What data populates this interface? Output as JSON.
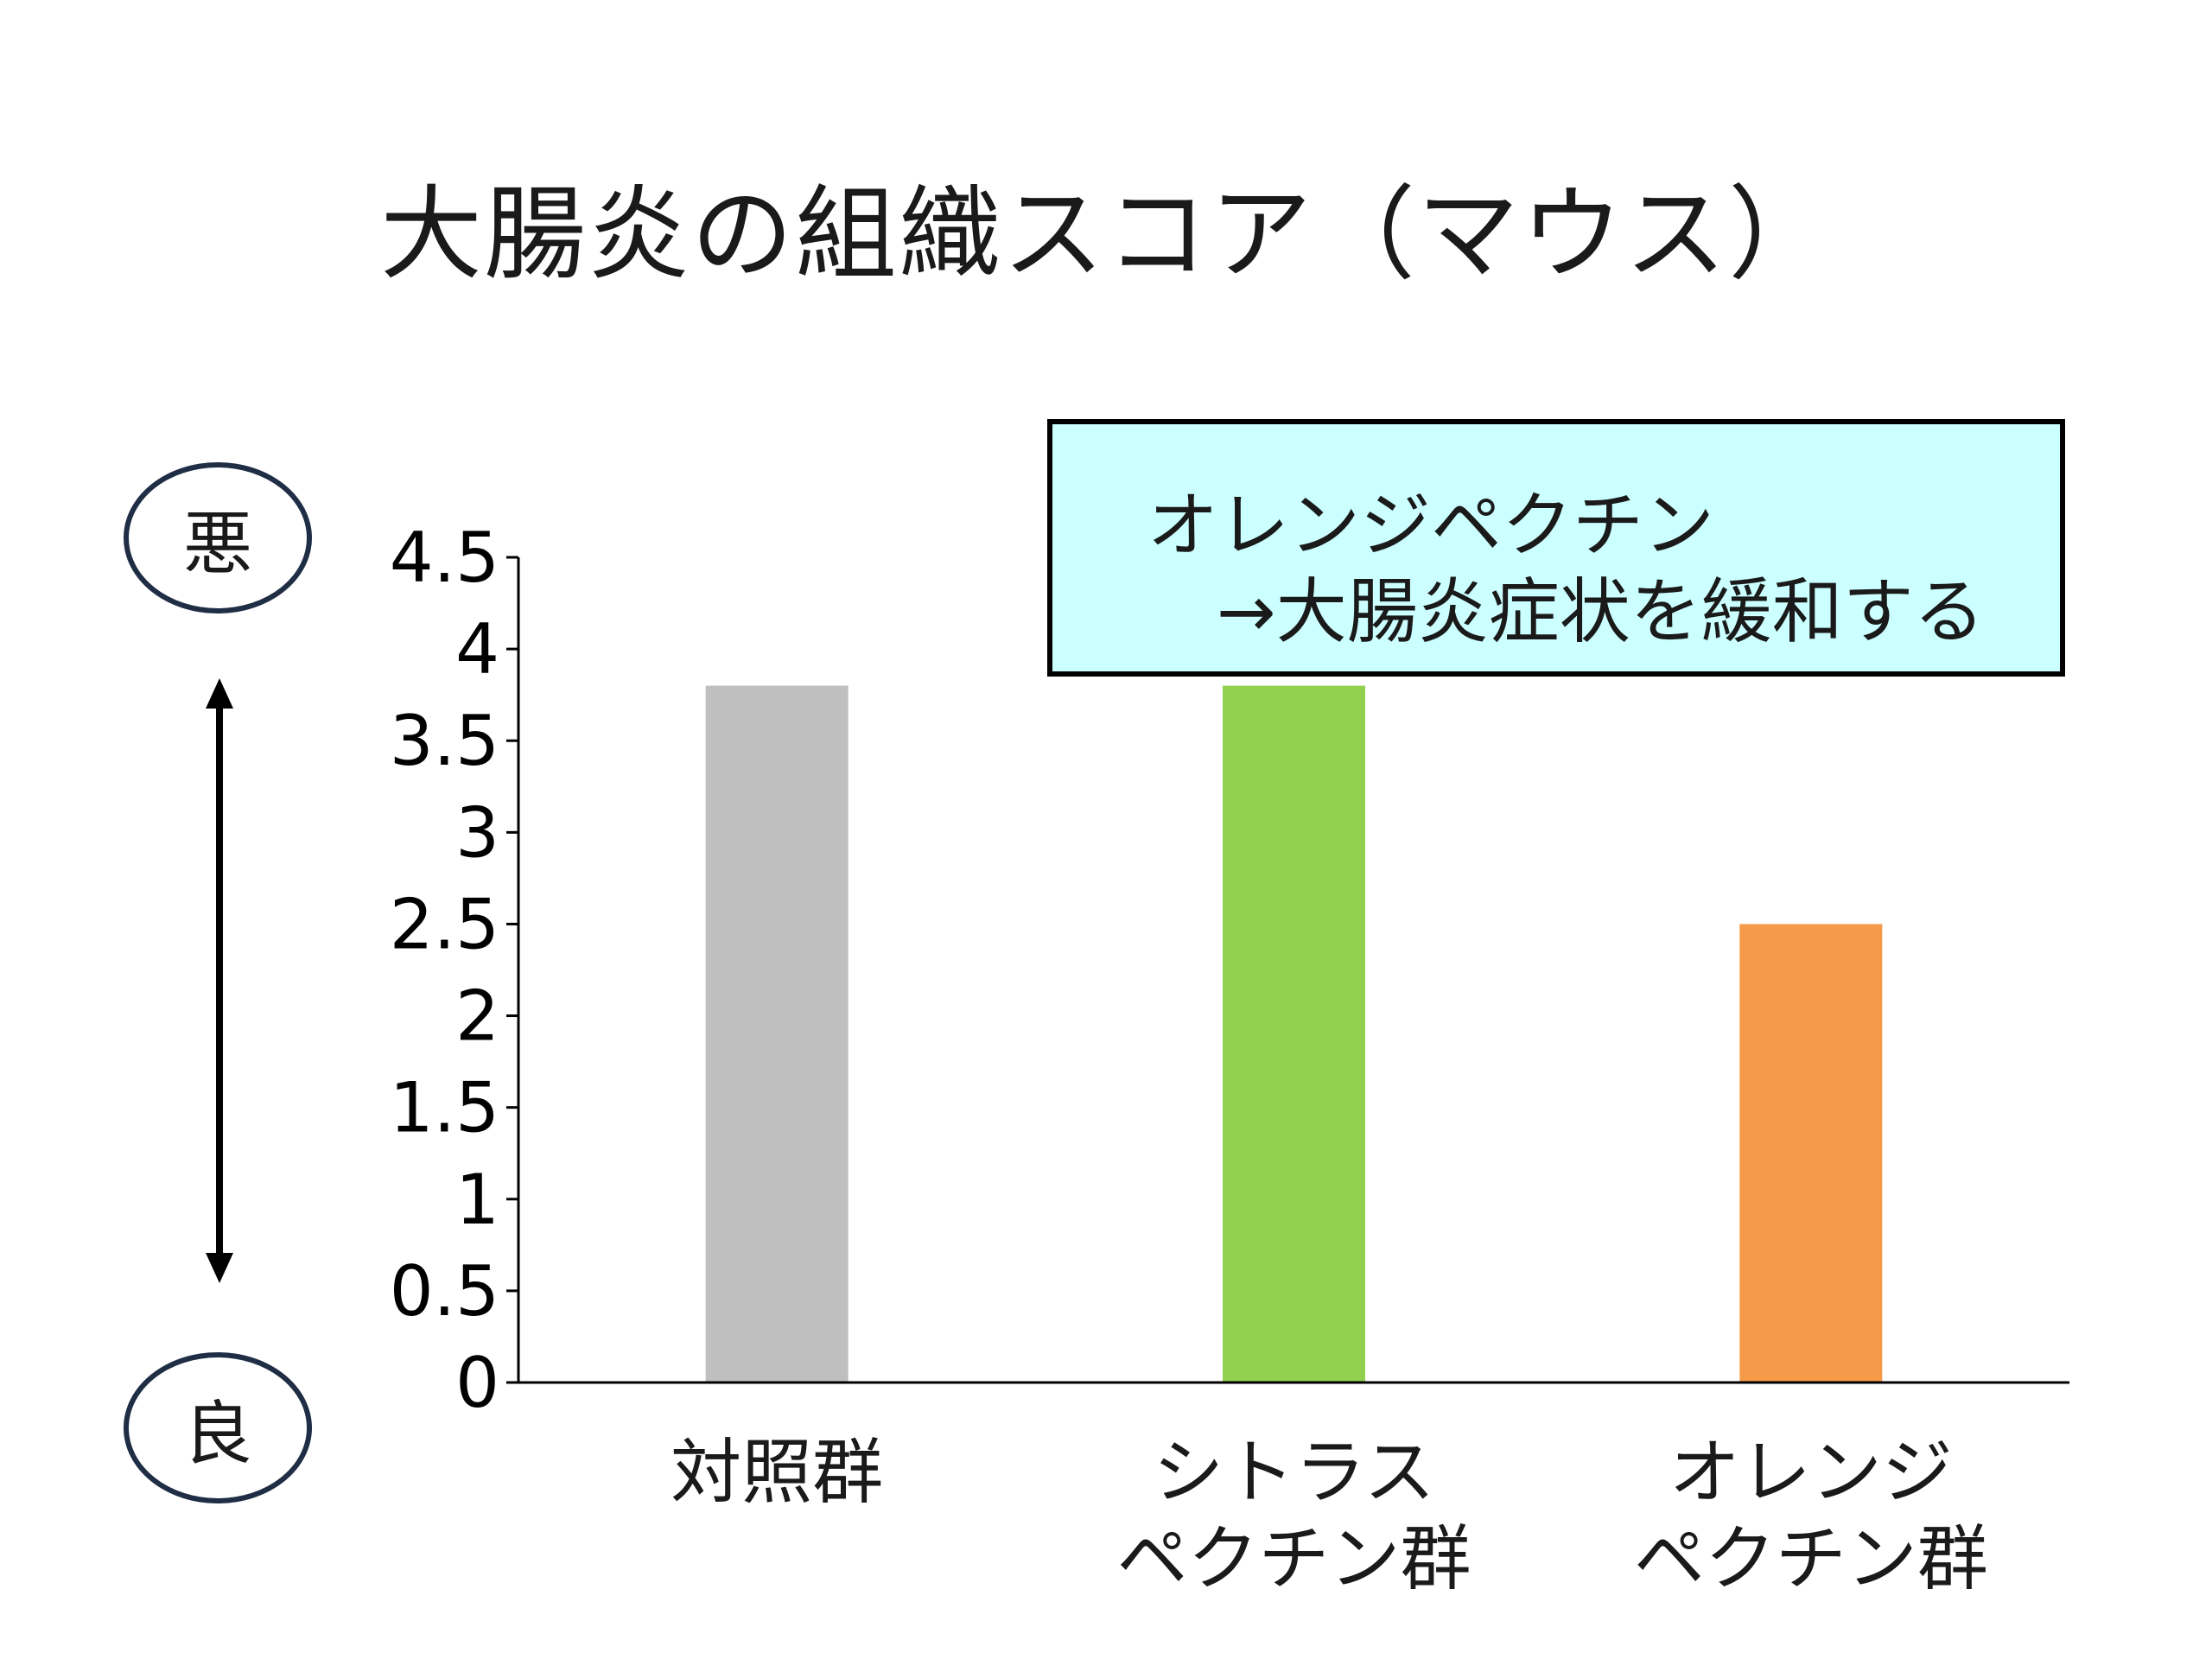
{
  "title": "大腸炎の組織スコア（マウス）",
  "callout": {
    "line1": "オレンジペクチン",
    "line2": "→大腸炎症状を緩和する"
  },
  "scale": {
    "bad": "悪",
    "good": "良"
  },
  "chart_data": {
    "type": "bar",
    "title": "大腸炎の組織スコア（マウス）",
    "xlabel": "",
    "ylabel": "",
    "categories": [
      [
        "対照群"
      ],
      [
        "シトラス",
        "ペクチン群"
      ],
      [
        "オレンジ",
        "ペクチン群"
      ]
    ],
    "values": [
      3.8,
      3.8,
      2.5
    ],
    "colors": [
      "#bfbfbf",
      "#92d050",
      "#f59a48"
    ],
    "ylim": [
      0,
      4.5
    ],
    "yticks": [
      0,
      0.5,
      1,
      1.5,
      2,
      2.5,
      3,
      3.5,
      4,
      4.5
    ],
    "ytick_labels": [
      "0",
      "0.5",
      "1",
      "1.5",
      "2",
      "2.5",
      "3",
      "3.5",
      "4",
      "4.5"
    ],
    "grid": false,
    "legend": "none"
  }
}
